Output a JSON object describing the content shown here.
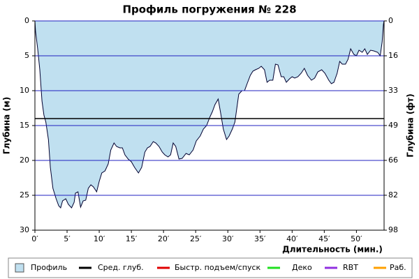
{
  "chart_data": {
    "type": "area",
    "title": "Профиль погружения № 228",
    "x_label": "Длительность (мин.)",
    "y_label": "Глубина (м)",
    "y2_label": "Глубина (фт)",
    "x": [
      0,
      0.1,
      0.43,
      0.76,
      1.1,
      1.4,
      1.7,
      2.1,
      2.4,
      2.8,
      3.3,
      3.7,
      4.0,
      4.3,
      4.8,
      5.2,
      5.7,
      6.1,
      6.3,
      6.7,
      7.1,
      7.5,
      7.9,
      8.3,
      8.7,
      9.1,
      9.6,
      10.0,
      10.4,
      10.9,
      11.4,
      11.8,
      12.3,
      12.7,
      13.2,
      13.6,
      14.0,
      14.5,
      15.0,
      15.5,
      16.1,
      16.6,
      17.1,
      17.5,
      17.9,
      18.4,
      18.8,
      19.3,
      19.8,
      20.2,
      20.7,
      21.1,
      21.5,
      21.9,
      22.4,
      22.9,
      23.5,
      24.0,
      24.6,
      25.1,
      25.7,
      26.2,
      26.7,
      27.2,
      27.6,
      28.0,
      28.5,
      28.9,
      29.3,
      29.8,
      30.2,
      30.7,
      31.1,
      31.4,
      31.7,
      32.2,
      32.6,
      33.0,
      33.5,
      33.9,
      34.3,
      34.8,
      35.2,
      35.7,
      36.1,
      36.5,
      37.0,
      37.4,
      37.8,
      38.3,
      38.7,
      39.1,
      39.6,
      40.0,
      40.4,
      40.9,
      41.4,
      41.9,
      42.4,
      43.0,
      43.5,
      44.0,
      44.6,
      45.1,
      45.7,
      46.1,
      46.5,
      47.0,
      47.4,
      47.8,
      48.3,
      48.7,
      49.1,
      49.6,
      50.0,
      50.4,
      50.9,
      51.3,
      51.7,
      52.2,
      52.7,
      53.3,
      53.7,
      54.0,
      54.2,
      54.3
    ],
    "series": [
      {
        "name": "Профиль",
        "color": "#c0e0f0",
        "line_color": "#000030",
        "values": [
          0,
          1.5,
          4,
          7,
          11.5,
          13.5,
          14.5,
          17,
          21,
          24,
          25.5,
          26.5,
          26.8,
          25.8,
          25.5,
          26.3,
          26.8,
          26,
          24.7,
          24.5,
          26.7,
          25.8,
          25.7,
          24,
          23.5,
          23.8,
          24.5,
          23,
          21.8,
          21.5,
          20.5,
          18.5,
          17.5,
          18,
          18.2,
          18.2,
          19.2,
          19.8,
          20.2,
          21,
          21.8,
          21,
          18.8,
          18.2,
          18,
          17.3,
          17.5,
          18,
          18.8,
          19.2,
          19.5,
          19.2,
          17.5,
          18,
          19.8,
          19.7,
          19,
          19.2,
          18.5,
          17.2,
          16.5,
          15.5,
          15,
          13.8,
          13,
          12,
          11.2,
          13.3,
          15.5,
          17,
          16.5,
          15.5,
          14.5,
          12.5,
          10.5,
          10,
          10,
          9,
          7.8,
          7.2,
          7,
          6.8,
          6.5,
          7,
          8.8,
          8.5,
          8.5,
          6.2,
          6.3,
          8,
          8,
          8.8,
          8.3,
          8,
          8.2,
          8,
          7.5,
          6.8,
          7.8,
          8.5,
          8.2,
          7.3,
          7,
          7.5,
          8.5,
          9,
          8.8,
          7.5,
          5.8,
          6.2,
          6.2,
          5.5,
          4,
          4.8,
          5,
          4.2,
          4.5,
          4,
          4.8,
          4.2,
          4.3,
          4.5,
          5,
          3,
          0.5,
          0
        ]
      }
    ],
    "reference_lines": [
      {
        "name": "Сред. глуб.",
        "color": "#000000",
        "value": 14
      }
    ],
    "legend_only": [
      {
        "name": "Быстр. подъем/спуск",
        "color": "#e00000"
      },
      {
        "name": "Деко",
        "color": "#20e020"
      },
      {
        "name": "RBT",
        "color": "#9030e0"
      },
      {
        "name": "Раб.",
        "color": "#ffa000"
      }
    ],
    "xlim": [
      0,
      54.3
    ],
    "xticks": [
      {
        "value": 0,
        "label": "0′"
      },
      {
        "value": 5,
        "label": "5′"
      },
      {
        "value": 10,
        "label": "10′"
      },
      {
        "value": 15,
        "label": "15′"
      },
      {
        "value": 20,
        "label": "20′"
      },
      {
        "value": 25,
        "label": "25′"
      },
      {
        "value": 30,
        "label": "30′"
      },
      {
        "value": 35,
        "label": "35′"
      },
      {
        "value": 40,
        "label": "40′"
      },
      {
        "value": 45,
        "label": "45′"
      },
      {
        "value": 50,
        "label": "50′"
      }
    ],
    "ylim": [
      0,
      30
    ],
    "y_inverted": true,
    "yticks": [
      0,
      5,
      10,
      15,
      20,
      25,
      30
    ],
    "y2lim": [
      0,
      98.43
    ],
    "y2ticks": [
      {
        "value": 0,
        "label": "0"
      },
      {
        "value": 16.4,
        "label": "16"
      },
      {
        "value": 32.8,
        "label": "33"
      },
      {
        "value": 49.2,
        "label": "49"
      },
      {
        "value": 65.6,
        "label": "66"
      },
      {
        "value": 82.0,
        "label": "82"
      },
      {
        "value": 98.43,
        "label": "98"
      }
    ],
    "grid": true,
    "grid_color": "#2020c0"
  }
}
